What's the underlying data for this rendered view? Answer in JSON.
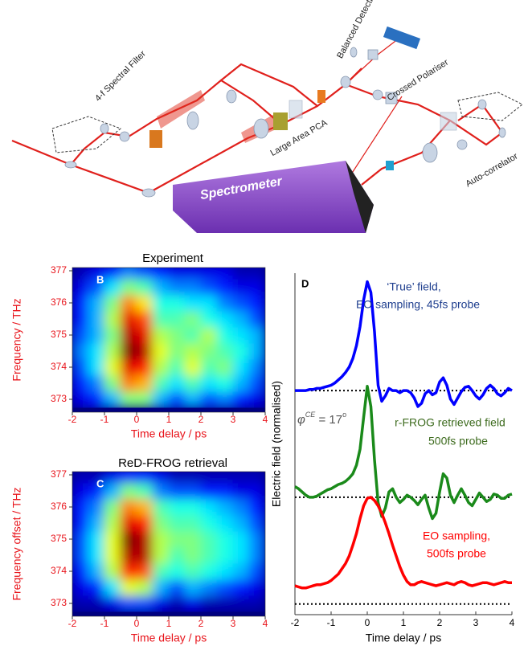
{
  "diagram": {
    "labels": [
      "Balanced Detection",
      "4-f Spectral Filter",
      "Crossed Polariser",
      "Large Area PCA",
      "Spectrometer",
      "Auto-correlator"
    ]
  },
  "chart_data": [
    {
      "type": "heatmap",
      "panel": "B",
      "title": "Experiment",
      "x_label": "Time delay / ps",
      "y_label": "Frequency / THz",
      "text_color": "#e8141b",
      "colormap": "jet",
      "x": [
        -1.75,
        -1.25,
        -0.75,
        -0.25,
        0.25,
        0.75,
        1.25,
        1.75,
        2.25,
        2.75,
        3.25,
        3.75
      ],
      "y": [
        373,
        373.5,
        374,
        374.5,
        375,
        375.5,
        376,
        376.5,
        377
      ],
      "z": [
        [
          0.1,
          0.15,
          0.3,
          0.5,
          0.5,
          0.3,
          0.2,
          0.3,
          0.2,
          0.25,
          0.15,
          0.1
        ],
        [
          0.15,
          0.25,
          0.5,
          0.75,
          0.7,
          0.45,
          0.35,
          0.45,
          0.35,
          0.4,
          0.3,
          0.2
        ],
        [
          0.2,
          0.35,
          0.6,
          0.9,
          0.85,
          0.55,
          0.45,
          0.6,
          0.45,
          0.5,
          0.35,
          0.25
        ],
        [
          0.25,
          0.35,
          0.55,
          1.0,
          0.95,
          0.6,
          0.5,
          0.55,
          0.5,
          0.45,
          0.4,
          0.3
        ],
        [
          0.2,
          0.3,
          0.5,
          0.95,
          0.9,
          0.55,
          0.5,
          0.45,
          0.55,
          0.4,
          0.35,
          0.3
        ],
        [
          0.15,
          0.3,
          0.55,
          0.9,
          0.8,
          0.45,
          0.45,
          0.5,
          0.4,
          0.35,
          0.3,
          0.2
        ],
        [
          0.15,
          0.3,
          0.5,
          0.75,
          0.65,
          0.4,
          0.4,
          0.35,
          0.35,
          0.25,
          0.2,
          0.15
        ],
        [
          0.1,
          0.2,
          0.35,
          0.5,
          0.45,
          0.3,
          0.25,
          0.25,
          0.2,
          0.15,
          0.1,
          0.1
        ],
        [
          0.05,
          0.1,
          0.15,
          0.25,
          0.2,
          0.15,
          0.1,
          0.1,
          0.1,
          0.1,
          0.05,
          0.05
        ]
      ],
      "xlim": [
        -2,
        4
      ],
      "ylim": [
        372.6,
        377.1
      ],
      "xticks": [
        -2,
        -1,
        0,
        1,
        2,
        3,
        4
      ],
      "yticks": [
        373,
        374,
        375,
        376,
        377
      ]
    },
    {
      "type": "heatmap",
      "panel": "C",
      "title": "ReD-FROG retrieval",
      "x_label": "Time delay / ps",
      "y_label": "Frequency offset / THz",
      "text_color": "#e8141b",
      "colormap": "jet",
      "x": [
        -1.75,
        -1.25,
        -0.75,
        -0.25,
        0.25,
        0.75,
        1.25,
        1.75,
        2.25,
        2.75,
        3.25,
        3.75
      ],
      "y": [
        373,
        373.5,
        374,
        374.5,
        375,
        375.5,
        376,
        376.5,
        377
      ],
      "z": [
        [
          0.05,
          0.05,
          0.1,
          0.2,
          0.2,
          0.1,
          0.05,
          0.1,
          0.05,
          0.05,
          0.05,
          0.05
        ],
        [
          0.1,
          0.15,
          0.35,
          0.6,
          0.55,
          0.3,
          0.2,
          0.3,
          0.25,
          0.2,
          0.15,
          0.1
        ],
        [
          0.15,
          0.3,
          0.55,
          0.85,
          0.8,
          0.45,
          0.4,
          0.45,
          0.4,
          0.35,
          0.3,
          0.2
        ],
        [
          0.2,
          0.35,
          0.6,
          0.95,
          0.95,
          0.55,
          0.45,
          0.5,
          0.45,
          0.4,
          0.35,
          0.25
        ],
        [
          0.2,
          0.35,
          0.6,
          1.0,
          0.95,
          0.55,
          0.5,
          0.5,
          0.45,
          0.4,
          0.35,
          0.25
        ],
        [
          0.15,
          0.3,
          0.55,
          0.9,
          0.85,
          0.5,
          0.45,
          0.45,
          0.4,
          0.35,
          0.3,
          0.2
        ],
        [
          0.15,
          0.25,
          0.5,
          0.75,
          0.7,
          0.45,
          0.4,
          0.4,
          0.35,
          0.3,
          0.25,
          0.15
        ],
        [
          0.1,
          0.15,
          0.3,
          0.5,
          0.45,
          0.25,
          0.2,
          0.2,
          0.15,
          0.15,
          0.1,
          0.1
        ],
        [
          0.05,
          0.05,
          0.1,
          0.15,
          0.15,
          0.1,
          0.05,
          0.05,
          0.05,
          0.05,
          0.05,
          0.05
        ]
      ],
      "xlim": [
        -2,
        4
      ],
      "ylim": [
        372.6,
        377.1
      ],
      "xticks": [
        -2,
        -1,
        0,
        1,
        2,
        3,
        4
      ],
      "yticks": [
        373,
        374,
        375,
        376,
        377
      ]
    },
    {
      "type": "line",
      "panel": "D",
      "x_label": "Time delay / ps",
      "y_label": "Electric field (normalised)",
      "x": [
        -2.0,
        -1.9,
        -1.8,
        -1.7,
        -1.6,
        -1.5,
        -1.4,
        -1.3,
        -1.2,
        -1.1,
        -1.0,
        -0.9,
        -0.8,
        -0.7,
        -0.6,
        -0.5,
        -0.4,
        -0.3,
        -0.2,
        -0.1,
        0.0,
        0.1,
        0.2,
        0.3,
        0.4,
        0.5,
        0.6,
        0.7,
        0.8,
        0.9,
        1.0,
        1.1,
        1.2,
        1.3,
        1.4,
        1.5,
        1.6,
        1.7,
        1.8,
        1.9,
        2.0,
        2.1,
        2.2,
        2.3,
        2.4,
        2.5,
        2.6,
        2.7,
        2.8,
        2.9,
        3.0,
        3.1,
        3.2,
        3.3,
        3.4,
        3.5,
        3.6,
        3.7,
        3.8,
        3.9,
        4.0
      ],
      "series": [
        {
          "color": "#0000ff",
          "values": [
            2.0,
            2.0,
            2.0,
            2.0,
            2.01,
            2.01,
            2.02,
            2.02,
            2.03,
            2.04,
            2.05,
            2.07,
            2.1,
            2.13,
            2.17,
            2.22,
            2.3,
            2.42,
            2.6,
            2.85,
            3.02,
            2.92,
            2.55,
            2.05,
            1.9,
            1.95,
            2.02,
            2.0,
            2.0,
            1.98,
            2.0,
            2.0,
            1.98,
            1.93,
            1.85,
            1.88,
            1.97,
            2.0,
            1.96,
            1.98,
            2.08,
            2.12,
            2.05,
            1.92,
            1.87,
            1.93,
            1.99,
            2.03,
            2.04,
            2.0,
            1.95,
            1.92,
            1.96,
            2.02,
            2.05,
            2.02,
            1.97,
            1.95,
            1.98,
            2.02,
            2.0
          ]
        },
        {
          "color": "#1a8a1a",
          "values": [
            1.1,
            1.08,
            1.05,
            1.02,
            1.0,
            1.0,
            1.01,
            1.03,
            1.05,
            1.07,
            1.08,
            1.1,
            1.12,
            1.13,
            1.15,
            1.18,
            1.22,
            1.3,
            1.45,
            1.75,
            2.04,
            1.85,
            1.35,
            0.95,
            0.82,
            0.9,
            1.05,
            1.08,
            1.0,
            0.95,
            0.98,
            1.02,
            1.0,
            0.97,
            0.93,
            0.98,
            1.02,
            0.9,
            0.8,
            0.85,
            1.05,
            1.22,
            1.18,
            1.02,
            0.95,
            1.02,
            1.08,
            1.02,
            0.95,
            0.92,
            0.98,
            1.04,
            1.0,
            0.96,
            0.98,
            1.03,
            1.02,
            0.99,
            0.99,
            1.02,
            1.03
          ]
        },
        {
          "color": "#ff0000",
          "values": [
            0.17,
            0.16,
            0.15,
            0.15,
            0.16,
            0.17,
            0.18,
            0.18,
            0.19,
            0.2,
            0.22,
            0.25,
            0.28,
            0.33,
            0.38,
            0.45,
            0.55,
            0.66,
            0.8,
            0.92,
            0.99,
            1.0,
            0.97,
            0.92,
            0.85,
            0.76,
            0.66,
            0.55,
            0.45,
            0.35,
            0.27,
            0.21,
            0.18,
            0.18,
            0.2,
            0.21,
            0.2,
            0.19,
            0.18,
            0.17,
            0.18,
            0.19,
            0.2,
            0.19,
            0.18,
            0.2,
            0.21,
            0.2,
            0.18,
            0.17,
            0.18,
            0.19,
            0.2,
            0.2,
            0.19,
            0.18,
            0.19,
            0.2,
            0.21,
            0.2,
            0.2
          ]
        }
      ],
      "baselines": [
        0,
        1,
        2
      ],
      "annotations": [
        {
          "text": "‘True’ field,",
          "color": "#1f3f8f"
        },
        {
          "text": "EO sampling, 45fs probe",
          "color": "#1f3f8f"
        },
        {
          "text": "r-FROG retrieved field",
          "color": "#3d6b1e"
        },
        {
          "text": "500fs probe",
          "color": "#3d6b1e"
        },
        {
          "text": "EO sampling,",
          "color": "#ff0000"
        },
        {
          "text": "500fs probe",
          "color": "#ff0000"
        }
      ],
      "phase_label": {
        "symbol": "φ",
        "symbol_sup": "CE",
        "text": " = 17",
        "unit_sup": "o"
      },
      "xlim": [
        -2,
        4
      ],
      "ylim": [
        -0.1,
        3.1
      ],
      "xticks": [
        -2,
        -1,
        0,
        1,
        2,
        3,
        4
      ]
    }
  ]
}
